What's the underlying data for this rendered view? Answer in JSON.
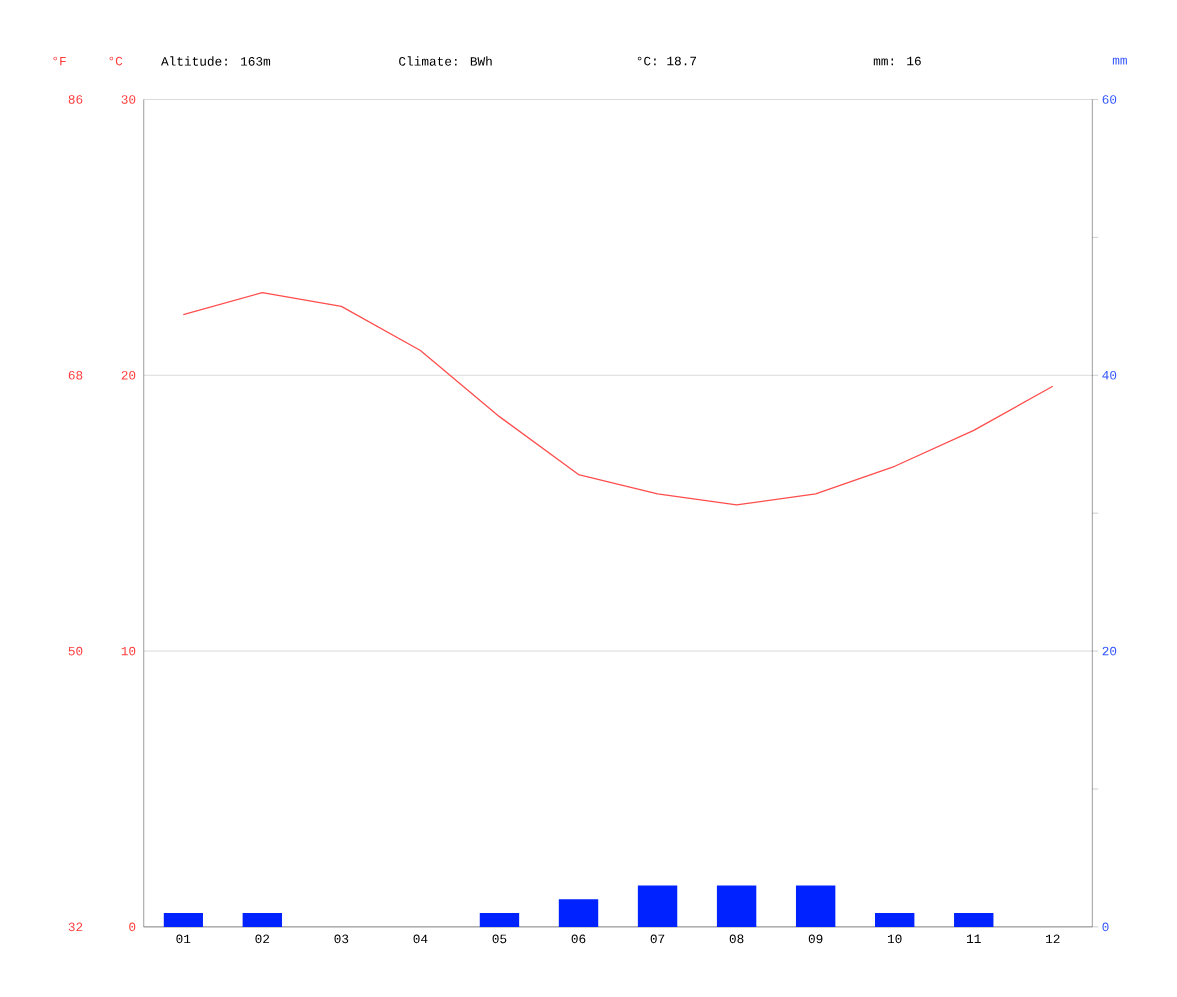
{
  "chart_data": {
    "type": "bar",
    "ylabel": "°C",
    "y2label": "mm",
    "y3label": "°F",
    "annotations": [
      "Altitude: 163m",
      "Climate: BWh",
      "°C: 18.7",
      "mm: 16"
    ],
    "categories": [
      "01",
      "02",
      "03",
      "04",
      "05",
      "06",
      "07",
      "08",
      "09",
      "10",
      "11",
      "12"
    ],
    "series": [
      {
        "type": "line",
        "color": "#ff4d4d",
        "values": [
          22.2,
          23.0,
          22.5,
          20.9,
          18.5,
          16.4,
          15.7,
          15.3,
          15.7,
          16.7,
          18.0,
          19.6
        ]
      },
      {
        "axis": "y2",
        "color": "#0022ff",
        "values": [
          1,
          1,
          0,
          0,
          1,
          2,
          3,
          3,
          3,
          1,
          1,
          0
        ]
      }
    ],
    "ylim": [
      0,
      30
    ],
    "yticks": [
      0,
      10,
      20,
      30
    ],
    "y2lim": [
      0,
      60
    ],
    "y2ticks": [
      0,
      {
        "value": 10,
        "label": null
      },
      20,
      {
        "value": 30,
        "label": null
      },
      40,
      {
        "value": 50,
        "label": null
      },
      60
    ],
    "y3lim": [
      32,
      86
    ],
    "y3ticks": [
      32,
      50,
      68,
      86
    ],
    "grid": "y"
  }
}
